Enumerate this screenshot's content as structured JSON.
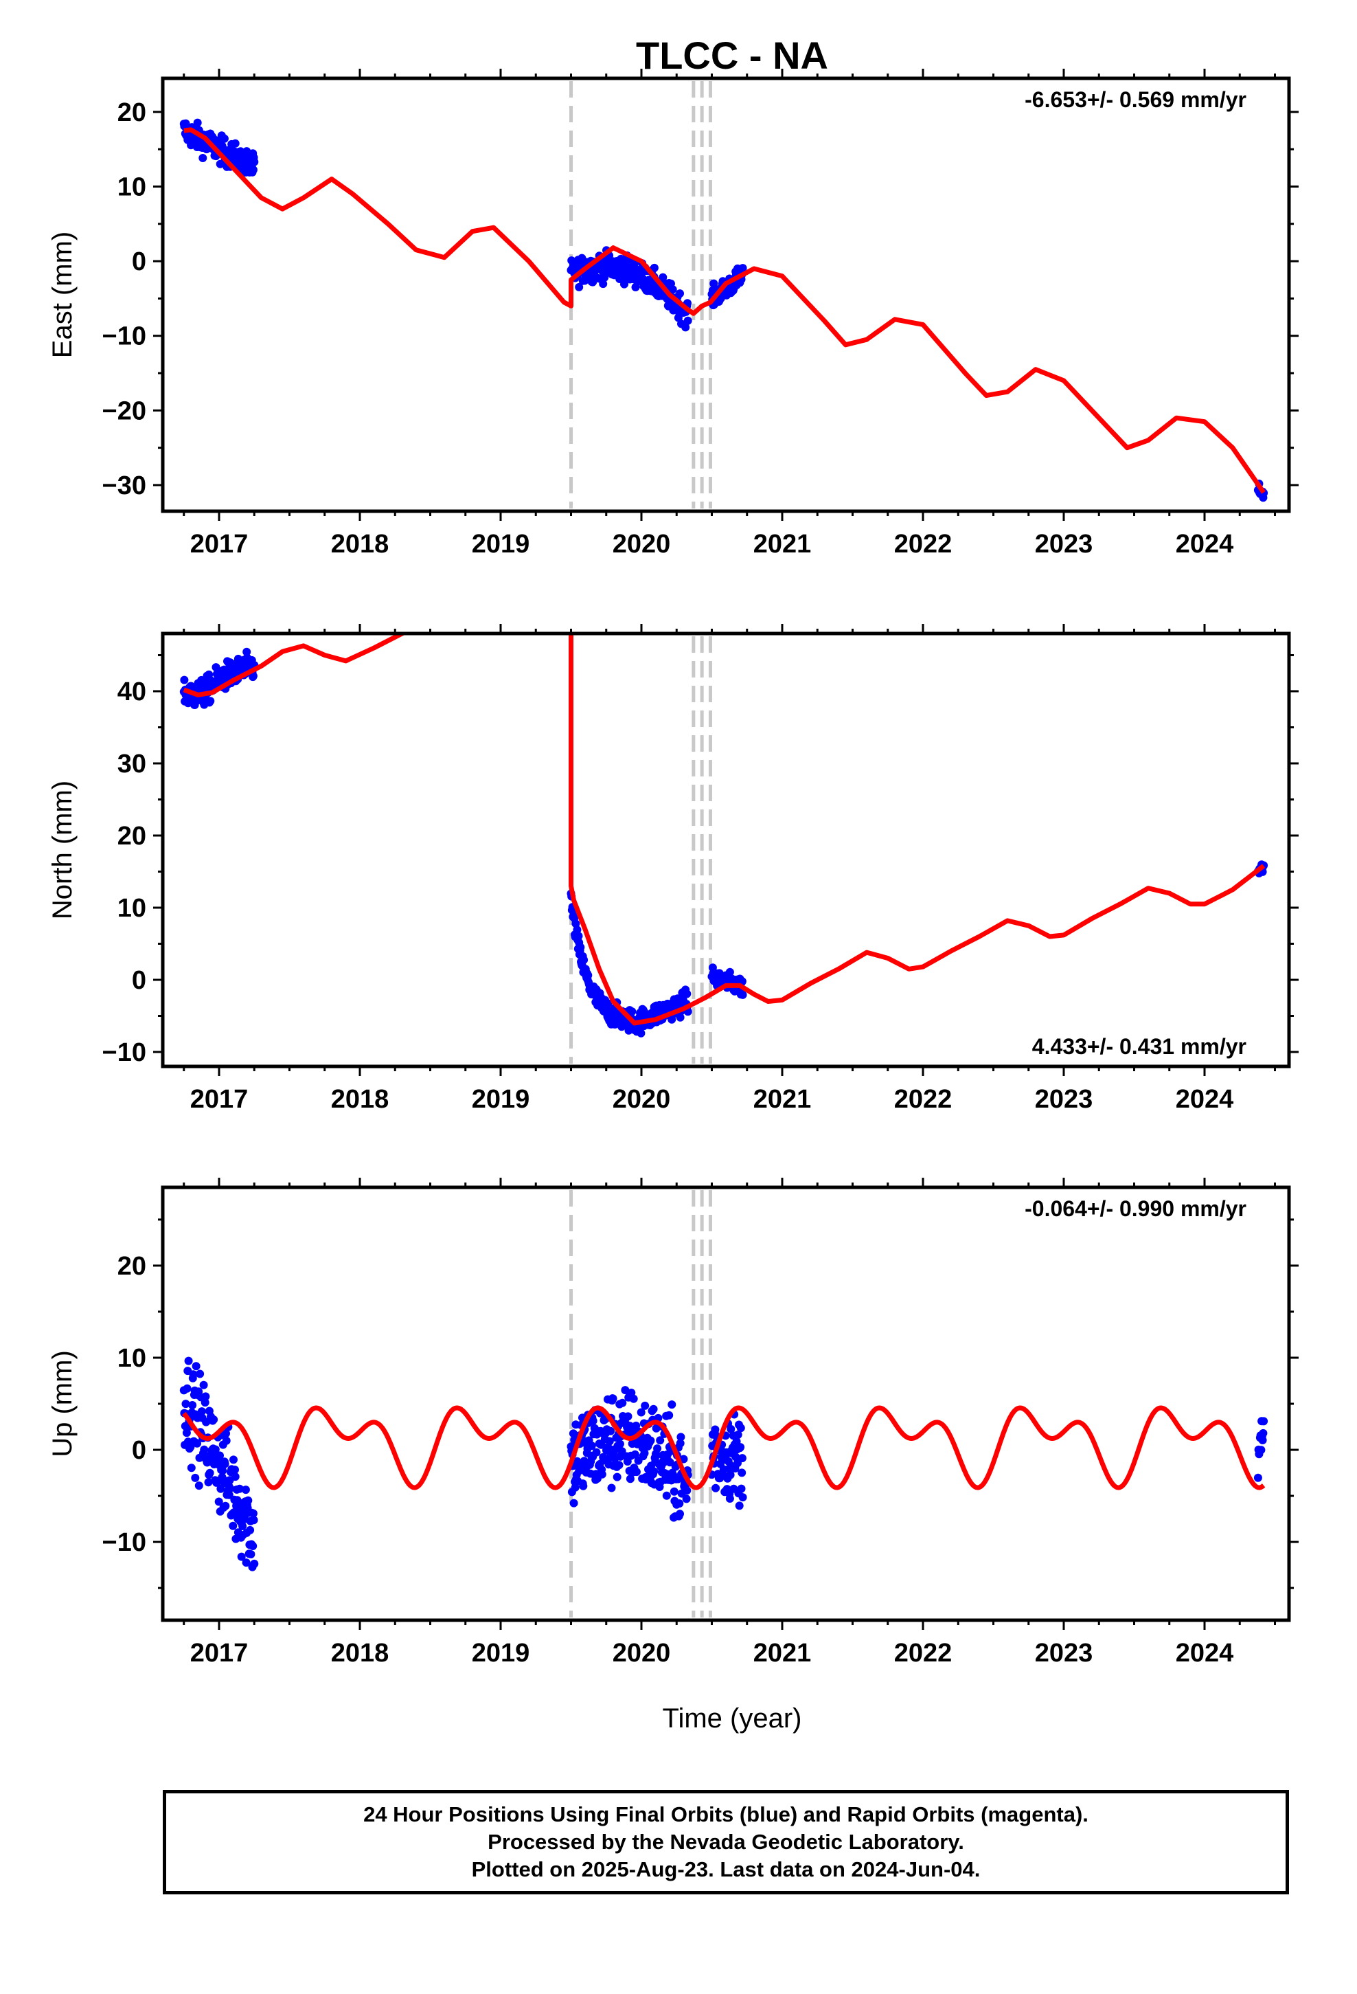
{
  "chart_data": {
    "type": "scatter",
    "title": "TLCC - NA",
    "xlabel": "Time (year)",
    "x_ticks": [
      2017,
      2018,
      2019,
      2020,
      2021,
      2022,
      2023,
      2024
    ],
    "xlim": [
      2016.6,
      2024.6
    ],
    "equipment_change_lines": [
      2019.5,
      2020.37,
      2020.43,
      2020.49
    ],
    "series_colors": {
      "final_orbits": "#0000ff",
      "rapid_orbits": "#ff00ff",
      "model": "#ff0000",
      "breaks": "#c8c8c8"
    },
    "panels": [
      {
        "component": "east",
        "ylabel": "East (mm)",
        "ylim": [
          -33.5,
          24.5
        ],
        "y_ticks": [
          20,
          10,
          0,
          -10,
          -20,
          -30
        ],
        "y_tick_labels": [
          "20",
          "10",
          "0",
          "−10",
          "−20",
          "−30"
        ],
        "rate_text": "-6.653+/- 0.569 mm/yr",
        "rate_pos": "top-right",
        "data_segments": [
          {
            "x0": 2016.75,
            "x1": 2017.25,
            "start": 17.5,
            "end": 12.5,
            "noise": 1.5
          },
          {
            "x0": 2019.5,
            "x1": 2020.33,
            "start": -1.5,
            "end": -7.0,
            "noise": 1.5,
            "bump": 3.0
          },
          {
            "x0": 2020.5,
            "x1": 2020.72,
            "start": -5.0,
            "end": -2.0,
            "noise": 1.2
          },
          {
            "x0": 2024.38,
            "x1": 2024.42,
            "start": -30.5,
            "end": -31.2,
            "noise": 0.6
          }
        ],
        "model": {
          "x": [
            2016.75,
            2016.8,
            2016.9,
            2017.0,
            2017.1,
            2017.2,
            2017.3,
            2017.45,
            2017.6,
            2017.8,
            2017.95,
            2018.2,
            2018.4,
            2018.6,
            2018.8,
            2018.95,
            2019.2,
            2019.45,
            2019.5,
            2019.5,
            2019.6,
            2019.8,
            2020.0,
            2020.2,
            2020.33,
            2020.37,
            2020.43,
            2020.49,
            2020.6,
            2020.8,
            2021.0,
            2021.3,
            2021.45,
            2021.6,
            2021.8,
            2022.0,
            2022.3,
            2022.45,
            2022.6,
            2022.8,
            2023.0,
            2023.3,
            2023.45,
            2023.6,
            2023.8,
            2024.0,
            2024.2,
            2024.42
          ],
          "y": [
            17.5,
            17.6,
            16.5,
            14.5,
            12.5,
            10.5,
            8.5,
            7.0,
            8.5,
            11.0,
            9.0,
            5.0,
            1.5,
            0.5,
            4.0,
            4.5,
            0.0,
            -5.5,
            -6.0,
            -2.5,
            -1.0,
            1.8,
            0.0,
            -4.5,
            -6.5,
            -7.0,
            -6.0,
            -5.5,
            -3.0,
            -1.0,
            -2.0,
            -8.0,
            -11.2,
            -10.5,
            -7.8,
            -8.5,
            -15.0,
            -18.0,
            -17.5,
            -14.5,
            -16.0,
            -22.0,
            -25.0,
            -24.0,
            -21.0,
            -21.5,
            -25.0,
            -31.0
          ]
        }
      },
      {
        "component": "north",
        "ylabel": "North (mm)",
        "ylim": [
          -12,
          48
        ],
        "y_ticks": [
          40,
          30,
          20,
          10,
          0,
          -10
        ],
        "y_tick_labels": [
          "40",
          "30",
          "20",
          "10",
          "0",
          "−10"
        ],
        "rate_text": "4.433+/- 0.431 mm/yr",
        "rate_pos": "bottom-right",
        "data_segments": [
          {
            "x0": 2016.75,
            "x1": 2017.25,
            "start": 40.0,
            "end": 43.5,
            "noise": 1.6,
            "dip": 1.2
          },
          {
            "x0": 2019.5,
            "x1": 2019.95,
            "start": 11.0,
            "end": -6.0,
            "noise": 1.3,
            "decay": true
          },
          {
            "x0": 2019.95,
            "x1": 2020.33,
            "start": -6.0,
            "end": -3.0,
            "noise": 1.3
          },
          {
            "x0": 2020.5,
            "x1": 2020.72,
            "start": 0.5,
            "end": -1.0,
            "noise": 1.1
          },
          {
            "x0": 2024.38,
            "x1": 2024.42,
            "start": 15.0,
            "end": 15.8,
            "noise": 0.7
          }
        ],
        "model": {
          "x": [
            2016.75,
            2016.85,
            2016.95,
            2017.1,
            2017.3,
            2017.45,
            2017.6,
            2017.75,
            2017.9,
            2018.1,
            2018.3,
            2018.33,
            2019.49,
            2019.5,
            2019.5,
            2019.52,
            2019.6,
            2019.7,
            2019.8,
            2019.95,
            2020.1,
            2020.3,
            2020.45,
            2020.6,
            2020.7,
            2020.8,
            2020.9,
            2021.0,
            2021.2,
            2021.4,
            2021.6,
            2021.75,
            2021.9,
            2022.0,
            2022.2,
            2022.4,
            2022.6,
            2022.75,
            2022.9,
            2023.0,
            2023.2,
            2023.4,
            2023.6,
            2023.75,
            2023.9,
            2024.0,
            2024.2,
            2024.42
          ],
          "y": [
            40.2,
            39.5,
            39.8,
            41.5,
            43.5,
            45.5,
            46.3,
            45.0,
            44.2,
            46.0,
            48.0,
            48.3,
            48.3,
            48.0,
            13.0,
            11.0,
            7.0,
            1.5,
            -3.0,
            -6.0,
            -5.5,
            -4.0,
            -2.5,
            -0.8,
            -0.8,
            -2.0,
            -3.0,
            -2.8,
            -0.5,
            1.5,
            3.8,
            3.0,
            1.5,
            1.8,
            4.0,
            6.0,
            8.2,
            7.5,
            6.0,
            6.2,
            8.5,
            10.5,
            12.7,
            12.0,
            10.5,
            10.5,
            12.5,
            15.8
          ]
        }
      },
      {
        "component": "up",
        "ylabel": "Up (mm)",
        "ylim": [
          -18.5,
          28.5
        ],
        "y_ticks": [
          20,
          10,
          0,
          -10
        ],
        "y_tick_labels": [
          "20",
          "10",
          "0",
          "−10"
        ],
        "rate_text": "-0.064+/- 0.990 mm/yr",
        "rate_pos": "top-right",
        "data_segments": [
          {
            "x0": 2016.75,
            "x1": 2017.25,
            "start": 6.0,
            "end": -9.0,
            "noise": 4.5
          },
          {
            "x0": 2019.5,
            "x1": 2020.33,
            "start": -1.5,
            "end": -4.0,
            "noise": 4.5,
            "bump": 4.0
          },
          {
            "x0": 2020.5,
            "x1": 2020.72,
            "start": 0.0,
            "end": -1.0,
            "noise": 4.0
          },
          {
            "x0": 2024.38,
            "x1": 2024.42,
            "start": 1.0,
            "end": 0.5,
            "noise": 3.5
          }
        ],
        "model": {
          "seasonal": true,
          "x0": 2016.75,
          "x1": 2024.42,
          "offset": 1.0,
          "annual_amp": 2.8,
          "annual_phase": 2.5,
          "semi_amp": 2.4,
          "semi_phase": -0.3
        }
      }
    ]
  },
  "footer": {
    "line1": "24 Hour Positions Using Final Orbits (blue) and Rapid Orbits (magenta).",
    "line2": "Processed by the Nevada Geodetic Laboratory.",
    "line3": "Plotted on 2025-Aug-23. Last data on 2024-Jun-04."
  }
}
